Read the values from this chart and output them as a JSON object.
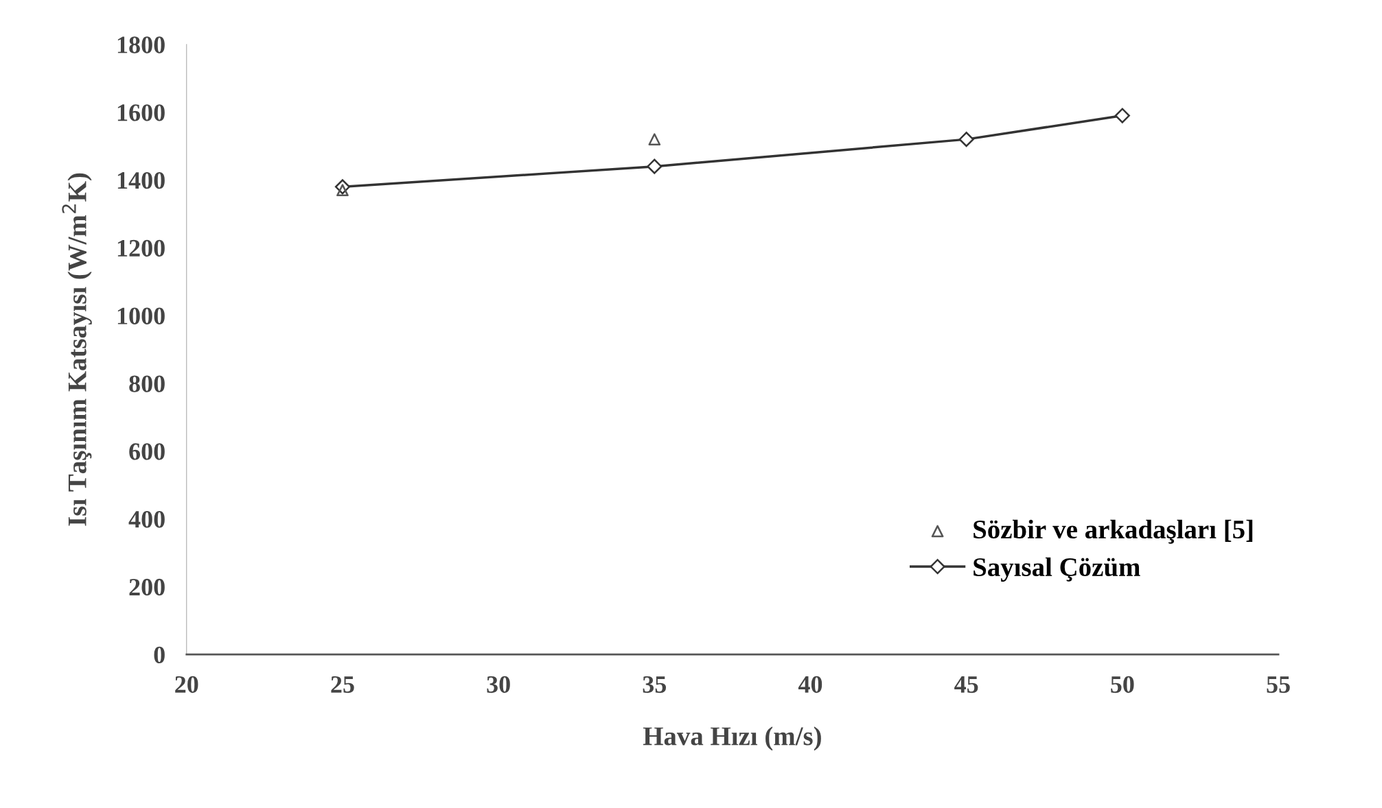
{
  "chart_data": {
    "type": "scatter",
    "xlabel": "Hava Hızı (m/s)",
    "ylabel": "Isı Taşınım Katsayısı (W/m$^{2}$K)",
    "xlim": [
      20,
      55
    ],
    "xticks": [
      20,
      25,
      30,
      35,
      40,
      45,
      50,
      55
    ],
    "ylim": [
      0,
      1800
    ],
    "yticks": [
      0,
      200,
      400,
      600,
      800,
      1000,
      1200,
      1400,
      1600,
      1800
    ],
    "grid": false,
    "legend": "bottom right",
    "series": [
      {
        "name": "Sözbir ve arkadaşları [5]",
        "marker": "triangle",
        "color": "#555555",
        "x": [
          25,
          35
        ],
        "values": [
          1370,
          1520
        ]
      },
      {
        "name": "Sayısal Çözüm",
        "type": "line",
        "marker": "diamond",
        "line_style": "solid",
        "color": "#333333",
        "x": [
          25,
          35,
          45,
          50
        ],
        "values": [
          1380,
          1440,
          1520,
          1590
        ]
      }
    ]
  }
}
